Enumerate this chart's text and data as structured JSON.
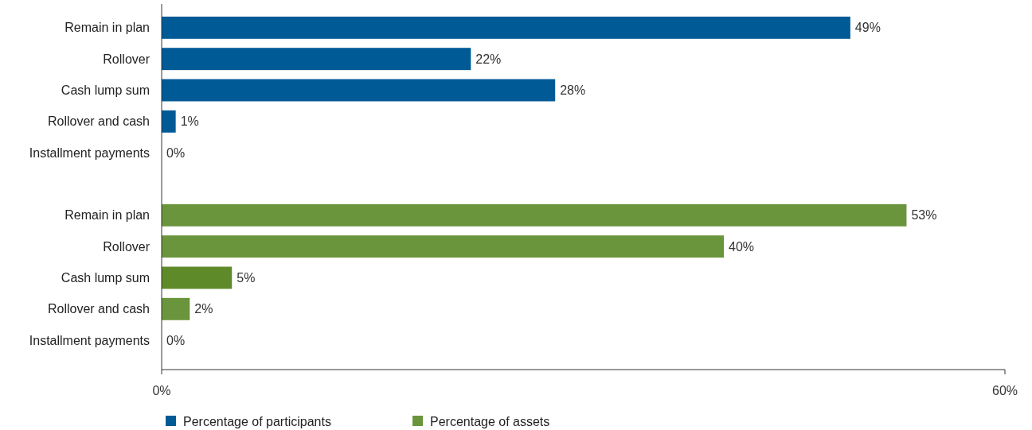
{
  "chart_data": {
    "type": "bar",
    "orientation": "horizontal",
    "categories": [
      "Remain in plan",
      "Rollover",
      "Cash lump sum",
      "Rollover and cash",
      "Installment payments",
      null,
      "Remain in plan",
      "Rollover",
      "Cash lump sum",
      "Rollover and cash",
      "Installment payments"
    ],
    "series": [
      {
        "name": "Percentage of participants",
        "color": "#005a96",
        "values": [
          49,
          22,
          28,
          1,
          0,
          null,
          null,
          null,
          null,
          null,
          null
        ],
        "value_labels": [
          "49%",
          "22%",
          "28%",
          "1%",
          "0%",
          null,
          null,
          null,
          null,
          null,
          null
        ]
      },
      {
        "name": "Percentage of assets",
        "color": "#6a953c",
        "colors": [
          null,
          null,
          null,
          null,
          null,
          null,
          "#6a953c",
          "#6a953c",
          "#5f8a2a",
          "#6a953c",
          "#6a953c"
        ],
        "values": [
          null,
          null,
          null,
          null,
          null,
          null,
          53,
          40,
          5,
          2,
          0
        ],
        "value_labels": [
          null,
          null,
          null,
          null,
          null,
          null,
          "53%",
          "40%",
          "5%",
          "2%",
          "0%"
        ]
      }
    ],
    "xlim": [
      0,
      60
    ],
    "xticks": [
      {
        "value": 0,
        "label": "0%"
      },
      {
        "value": 60,
        "label": "60%"
      }
    ],
    "grid": false,
    "legend": "bottom left"
  }
}
